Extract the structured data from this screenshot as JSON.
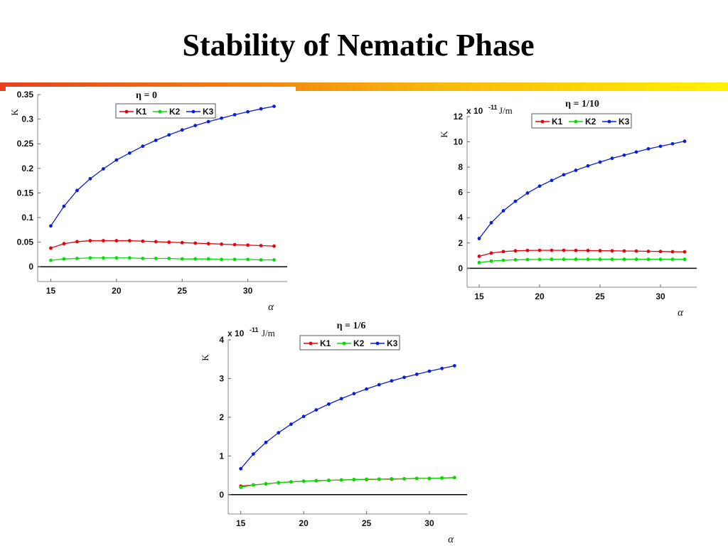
{
  "slide": {
    "title": "Stability of Nematic Phase"
  },
  "colors": {
    "K1": "#e8000a",
    "K2": "#00e000",
    "K3": "#0a1ed8",
    "zero_line": "#000000"
  },
  "chart_data": [
    {
      "type": "line",
      "title": "η = 0",
      "xlabel": "α",
      "ylabel": "K",
      "multiplier": "",
      "unit": "",
      "legend_position": "top",
      "xlim": [
        14,
        33
      ],
      "ylim": [
        -0.03,
        0.35
      ],
      "xticks": [
        15,
        20,
        25,
        30
      ],
      "xtick_labels": [
        "15",
        "20",
        "25",
        "30"
      ],
      "yticks": [
        0,
        0.05,
        0.1,
        0.15,
        0.2,
        0.25,
        0.3,
        0.35
      ],
      "ytick_labels": [
        "0",
        "0.05",
        "0.1",
        "0.15",
        "0.2",
        "0.25",
        "0.3",
        "0.35"
      ],
      "x": [
        15,
        16,
        17,
        18,
        19,
        20,
        21,
        22,
        23,
        24,
        25,
        26,
        27,
        28,
        29,
        30,
        31,
        32
      ],
      "series": [
        {
          "name": "K1",
          "values": [
            0.038,
            0.047,
            0.051,
            0.053,
            0.053,
            0.053,
            0.053,
            0.052,
            0.051,
            0.05,
            0.049,
            0.048,
            0.047,
            0.046,
            0.045,
            0.044,
            0.043,
            0.042
          ]
        },
        {
          "name": "K2",
          "values": [
            0.013,
            0.016,
            0.017,
            0.018,
            0.018,
            0.018,
            0.018,
            0.017,
            0.017,
            0.017,
            0.016,
            0.016,
            0.016,
            0.015,
            0.015,
            0.015,
            0.014,
            0.014
          ]
        },
        {
          "name": "K3",
          "values": [
            0.083,
            0.123,
            0.155,
            0.179,
            0.199,
            0.217,
            0.231,
            0.245,
            0.257,
            0.268,
            0.278,
            0.287,
            0.295,
            0.302,
            0.309,
            0.315,
            0.321,
            0.326
          ]
        }
      ]
    },
    {
      "type": "line",
      "title": "η = 1/10",
      "xlabel": "α",
      "ylabel": "K",
      "multiplier": "x 10",
      "multiplier_exponent": "-11",
      "unit": "J/m",
      "legend_position": "top",
      "xlim": [
        14,
        33
      ],
      "ylim": [
        -1.5,
        12
      ],
      "xticks": [
        15,
        20,
        25,
        30
      ],
      "xtick_labels": [
        "15",
        "20",
        "25",
        "30"
      ],
      "yticks": [
        0,
        2,
        4,
        6,
        8,
        10,
        12
      ],
      "ytick_labels": [
        "0",
        "2",
        "4",
        "6",
        "8",
        "10",
        "12"
      ],
      "x": [
        15,
        16,
        17,
        18,
        19,
        20,
        21,
        22,
        23,
        24,
        25,
        26,
        27,
        28,
        29,
        30,
        31,
        32
      ],
      "series": [
        {
          "name": "K1",
          "values": [
            0.95,
            1.2,
            1.32,
            1.38,
            1.41,
            1.42,
            1.42,
            1.42,
            1.41,
            1.4,
            1.39,
            1.38,
            1.37,
            1.36,
            1.34,
            1.33,
            1.31,
            1.3
          ]
        },
        {
          "name": "K2",
          "values": [
            0.45,
            0.57,
            0.63,
            0.67,
            0.69,
            0.7,
            0.71,
            0.71,
            0.71,
            0.71,
            0.71,
            0.71,
            0.71,
            0.71,
            0.71,
            0.71,
            0.71,
            0.71
          ]
        },
        {
          "name": "K3",
          "values": [
            2.35,
            3.6,
            4.55,
            5.3,
            5.95,
            6.5,
            6.95,
            7.4,
            7.75,
            8.1,
            8.4,
            8.7,
            8.95,
            9.2,
            9.45,
            9.65,
            9.85,
            10.05
          ]
        }
      ]
    },
    {
      "type": "line",
      "title": "η = 1/6",
      "xlabel": "α",
      "ylabel": "K",
      "multiplier": "x 10",
      "multiplier_exponent": "-11",
      "unit": "J/m",
      "legend_position": "top",
      "xlim": [
        14,
        33
      ],
      "ylim": [
        -0.5,
        4
      ],
      "xticks": [
        15,
        20,
        25,
        30
      ],
      "xtick_labels": [
        "15",
        "20",
        "25",
        "30"
      ],
      "yticks": [
        0,
        1,
        2,
        3,
        4
      ],
      "ytick_labels": [
        "0",
        "1",
        "2",
        "3",
        "4"
      ],
      "x": [
        15,
        16,
        17,
        18,
        19,
        20,
        21,
        22,
        23,
        24,
        25,
        26,
        27,
        28,
        29,
        30,
        31,
        32
      ],
      "series": [
        {
          "name": "K1",
          "values": [
            0.22,
            0.25,
            0.28,
            0.31,
            0.33,
            0.35,
            0.36,
            0.37,
            0.38,
            0.39,
            0.39,
            0.4,
            0.4,
            0.41,
            0.42,
            0.42,
            0.43,
            0.44
          ]
        },
        {
          "name": "K2",
          "values": [
            0.19,
            0.25,
            0.28,
            0.31,
            0.33,
            0.35,
            0.36,
            0.37,
            0.38,
            0.39,
            0.4,
            0.4,
            0.41,
            0.41,
            0.42,
            0.42,
            0.43,
            0.44
          ]
        },
        {
          "name": "K3",
          "values": [
            0.67,
            1.05,
            1.35,
            1.6,
            1.82,
            2.02,
            2.19,
            2.34,
            2.48,
            2.61,
            2.73,
            2.84,
            2.94,
            3.03,
            3.11,
            3.19,
            3.26,
            3.33
          ]
        }
      ]
    }
  ]
}
